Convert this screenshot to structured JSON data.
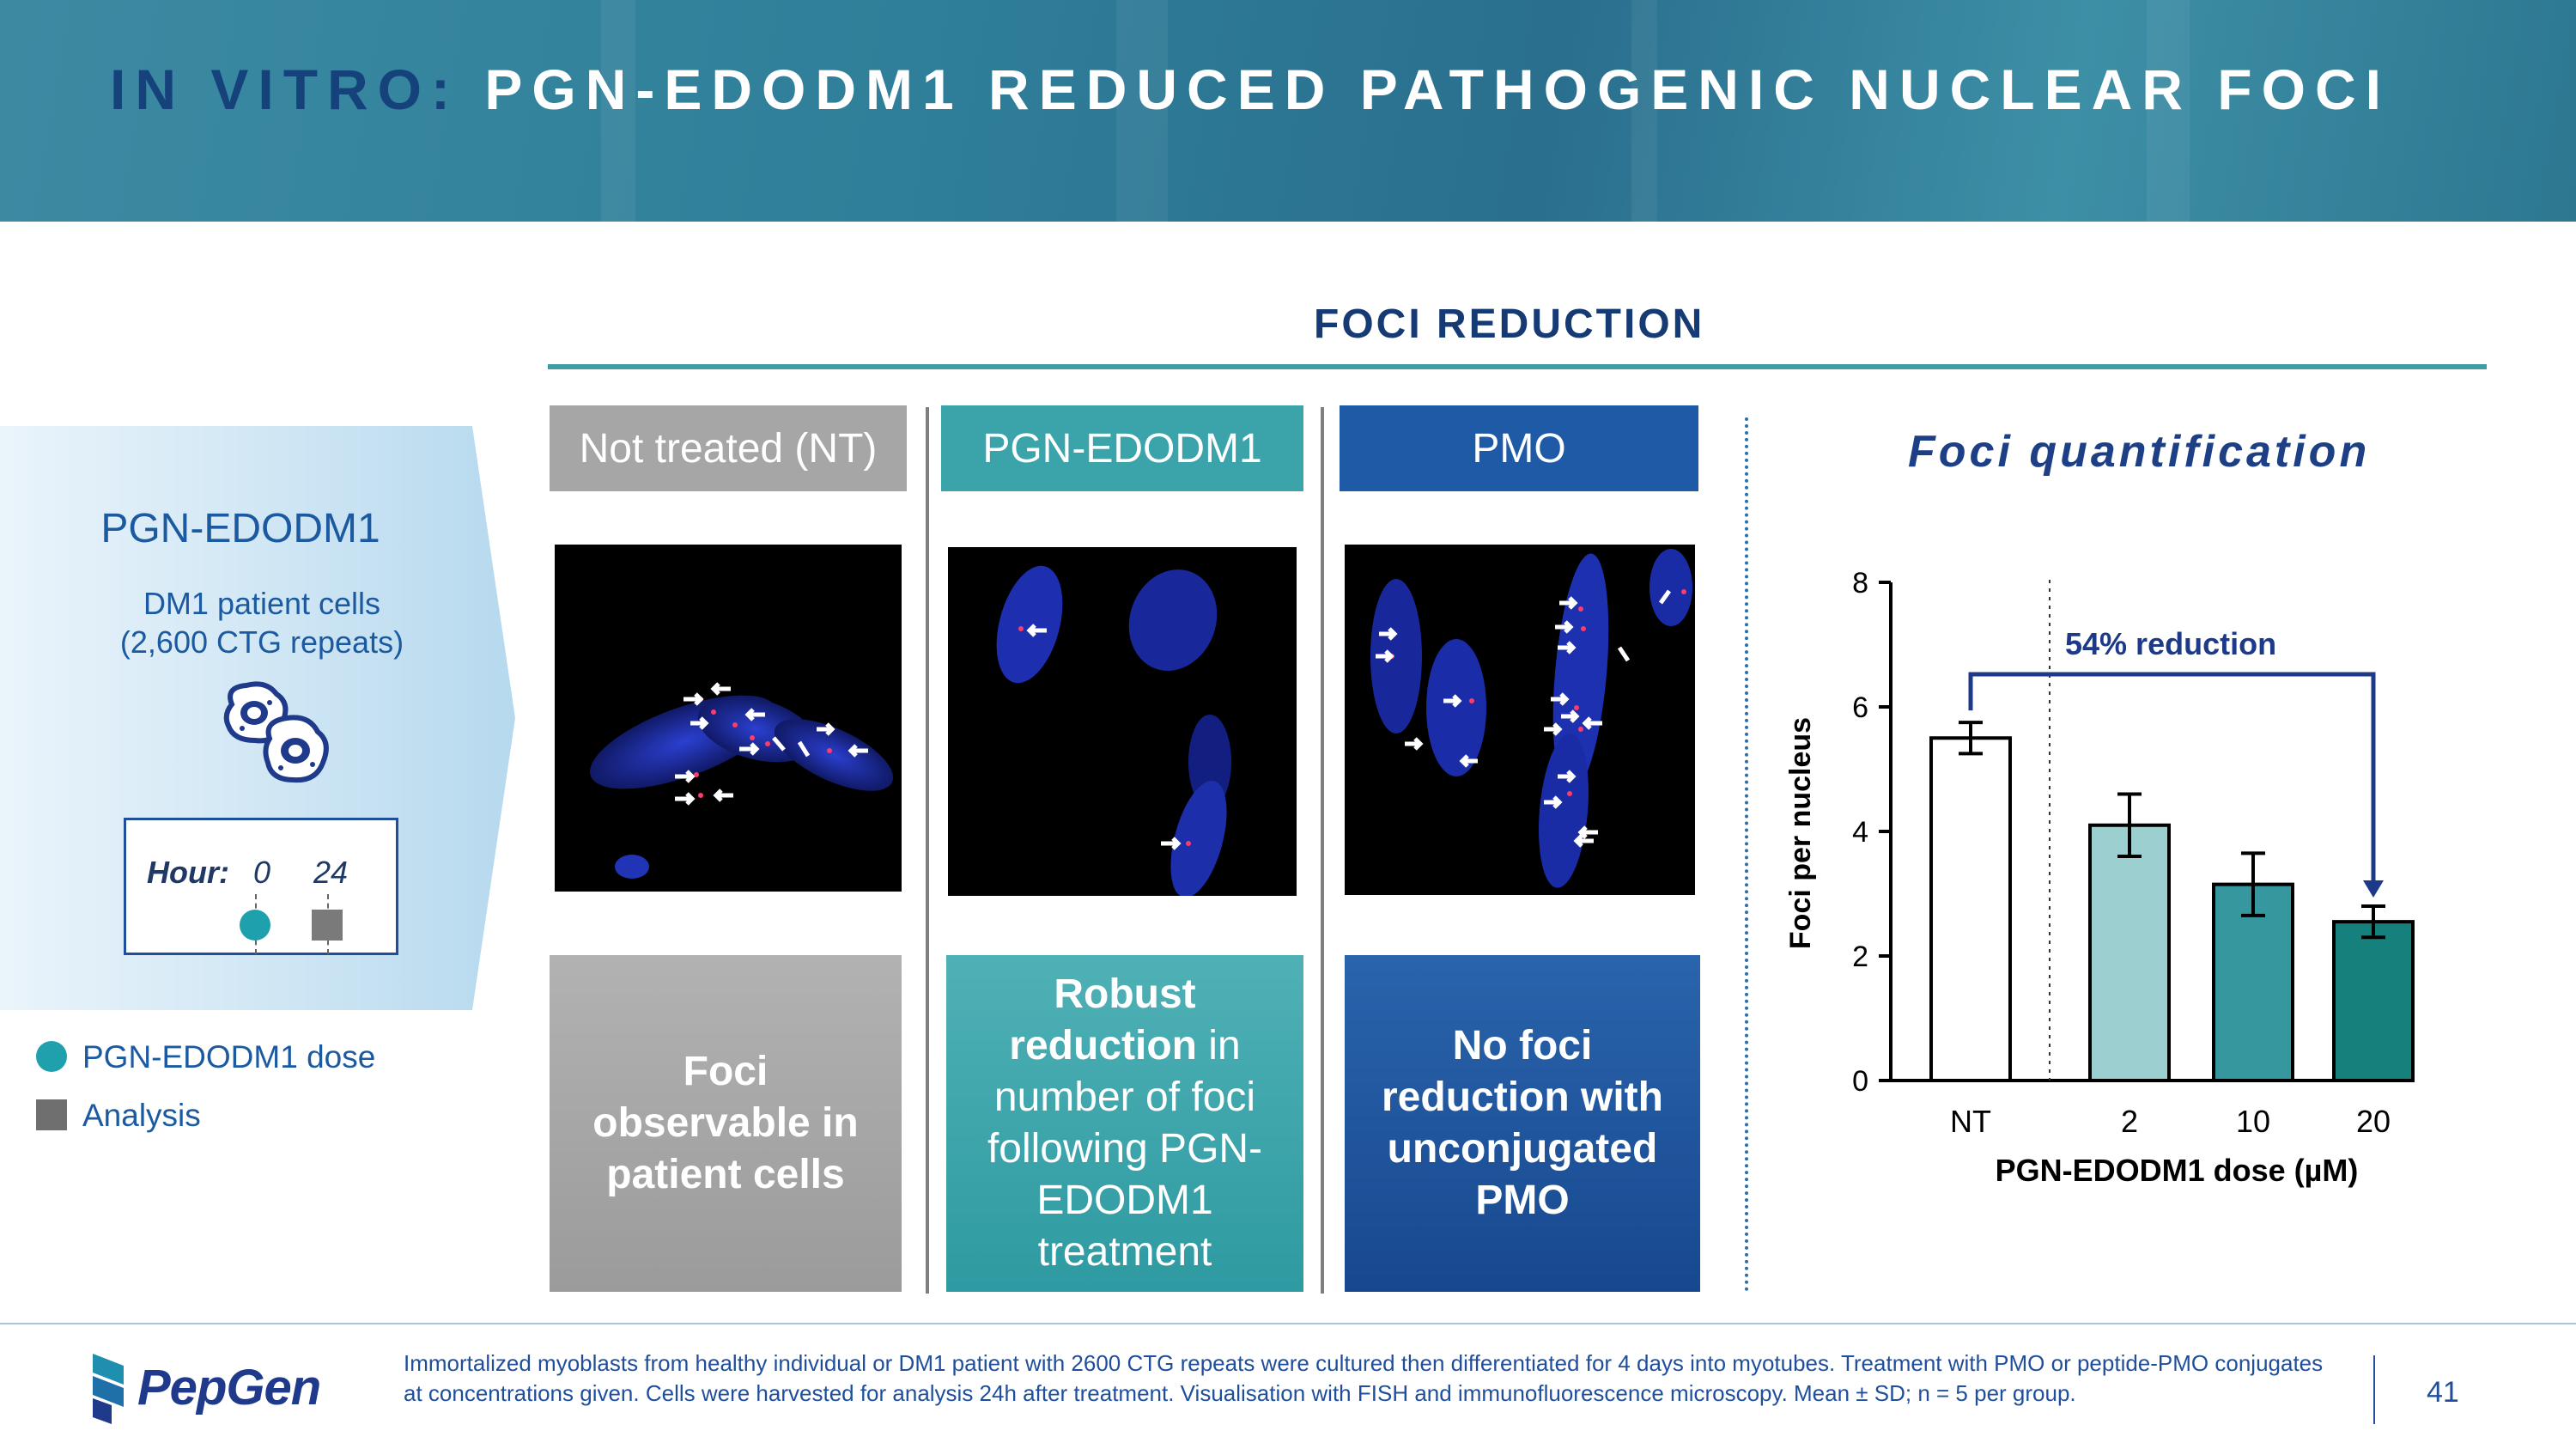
{
  "title": {
    "prefix": "IN VITRO:",
    "main": "PGN-EDODM1 REDUCED PATHOGENIC NUCLEAR FOCI"
  },
  "section_title": "FOCI REDUCTION",
  "left_panel": {
    "title": "PGN-EDODM1",
    "subtitle_line1": "DM1 patient cells",
    "subtitle_line2": "(2,600 CTG repeats)",
    "timeline": {
      "label": "Hour:",
      "hour_start": "0",
      "hour_end": "24"
    },
    "legend": {
      "dose": "PGN-EDODM1 dose",
      "analysis": "Analysis"
    },
    "icon": "cells-icon"
  },
  "columns": [
    {
      "header": "Not treated (NT)",
      "caption": [
        "Foci",
        "observable in",
        "patient cells"
      ]
    },
    {
      "header": "PGN-EDODM1",
      "caption_bold": [
        "Robust",
        "reduction"
      ],
      "caption_rest": [
        " in",
        "number of foci",
        "following PGN-",
        "EDODM1",
        "treatment"
      ]
    },
    {
      "header": "PMO",
      "caption": [
        "No foci",
        "reduction with",
        "unconjugated",
        "PMO"
      ]
    }
  ],
  "colors": {
    "nt": "#a6a6a6",
    "pgn": "#3aa4aa",
    "pmo": "#1f5aa6",
    "title_blue": "#15427a"
  },
  "chart_data": {
    "type": "bar",
    "title": "Foci quantification",
    "categories": [
      "NT",
      "2",
      "10",
      "20"
    ],
    "values": [
      5.5,
      4.1,
      3.15,
      2.55
    ],
    "errors": [
      0.25,
      0.5,
      0.5,
      0.25
    ],
    "bar_colors": [
      "#ffffff",
      "#9ccfd0",
      "#37979e",
      "#16807c"
    ],
    "xlabel": "PGN-EDODM1 dose (µM)",
    "ylabel": "Foci per nucleus",
    "ylim": [
      0,
      8
    ],
    "yticks": [
      "0",
      "2",
      "4",
      "6",
      "8"
    ],
    "annotation": "54% reduction",
    "grid": false
  },
  "footer": {
    "logo": "PepGen",
    "footnote": "Immortalized myoblasts from healthy individual or DM1 patient with 2600 CTG repeats were cultured then differentiated for 4 days into myotubes. Treatment with PMO or peptide-PMO conjugates at concentrations given. Cells were harvested for analysis 24h after treatment. Visualisation with FISH and immunofluorescence microscopy. Mean ± SD; n = 5 per group.",
    "page": "41"
  }
}
